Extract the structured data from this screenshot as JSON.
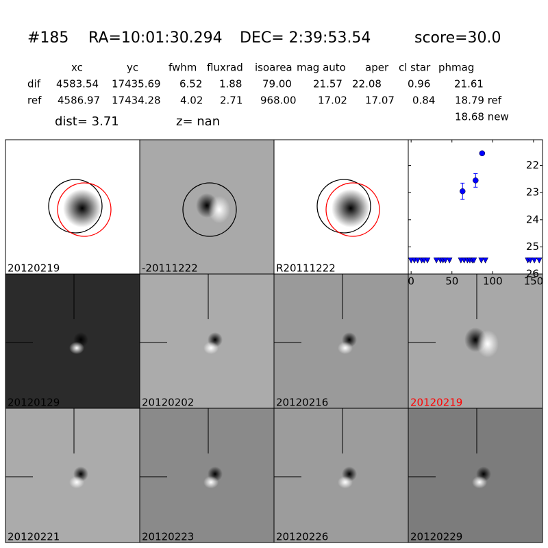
{
  "header": {
    "id": "#185",
    "ra": "RA=10:01:30.294",
    "dec": "DEC= 2:39:53.54",
    "score": "score=30.0"
  },
  "table": {
    "columns": [
      "xc",
      "yc",
      "fwhm",
      "fluxrad",
      "isoarea",
      "mag auto",
      "aper",
      "cl star",
      "phmag"
    ],
    "rows": [
      {
        "label": "dif",
        "cells": [
          "4583.54",
          "17435.69",
          "6.52",
          "1.88",
          "79.00",
          "21.57",
          "22.08",
          "0.96",
          "21.61"
        ]
      },
      {
        "label": "ref",
        "cells": [
          "4586.97",
          "17434.28",
          "4.02",
          "2.71",
          "968.00",
          "17.02",
          "17.07",
          "0.84",
          "18.79 ref"
        ]
      }
    ],
    "note": "18.68 new"
  },
  "dist": "dist=  3.71",
  "z": "z=   nan",
  "panels": [
    {
      "label": "20120219",
      "background": "#ffffff"
    },
    {
      "label": "-20111222",
      "background": "#a9a9a9"
    },
    {
      "label": "R20111222",
      "background": "#ffffff"
    },
    {
      "label": "20120129",
      "background": "#2b2b2b"
    },
    {
      "label": "20120202",
      "background": "#ababab"
    },
    {
      "label": "20120216",
      "background": "#9a9a9a"
    },
    {
      "label": "20120219",
      "background": "#a8a8a8",
      "label_color": "#ff0000"
    },
    {
      "label": "20120221",
      "background": "#ababab"
    },
    {
      "label": "20120223",
      "background": "#8a8a8a"
    },
    {
      "label": "20120226",
      "background": "#9c9c9c"
    },
    {
      "label": "20120229",
      "background": "#7c7c7c"
    }
  ],
  "chart_data": {
    "type": "scatter",
    "xlim": [
      -3.5,
      161
    ],
    "ylim": [
      26,
      21.05
    ],
    "xticks": [
      0,
      50,
      100,
      150
    ],
    "yticks": [
      22,
      23,
      24,
      25,
      26
    ],
    "series": [
      {
        "color": "#0000ff",
        "marker": "circle",
        "x": [
          63,
          79,
          87
        ],
        "values": [
          22.95,
          22.55,
          21.55
        ],
        "errors": [
          0.3,
          0.25,
          0.05
        ]
      },
      {
        "color": "#0000ff",
        "marker": "triangle-down",
        "x": [
          0,
          4,
          8,
          13,
          16,
          20,
          31,
          36,
          39,
          42,
          47,
          61,
          65,
          69,
          72,
          75,
          77,
          86,
          91,
          143,
          146,
          151,
          157
        ],
        "values": [
          25.5,
          25.5,
          25.5,
          25.5,
          25.5,
          25.5,
          25.5,
          25.5,
          25.5,
          25.5,
          25.5,
          25.5,
          25.5,
          25.5,
          25.5,
          25.5,
          25.5,
          25.5,
          25.5,
          25.5,
          25.5,
          25.5,
          25.5
        ]
      }
    ]
  }
}
